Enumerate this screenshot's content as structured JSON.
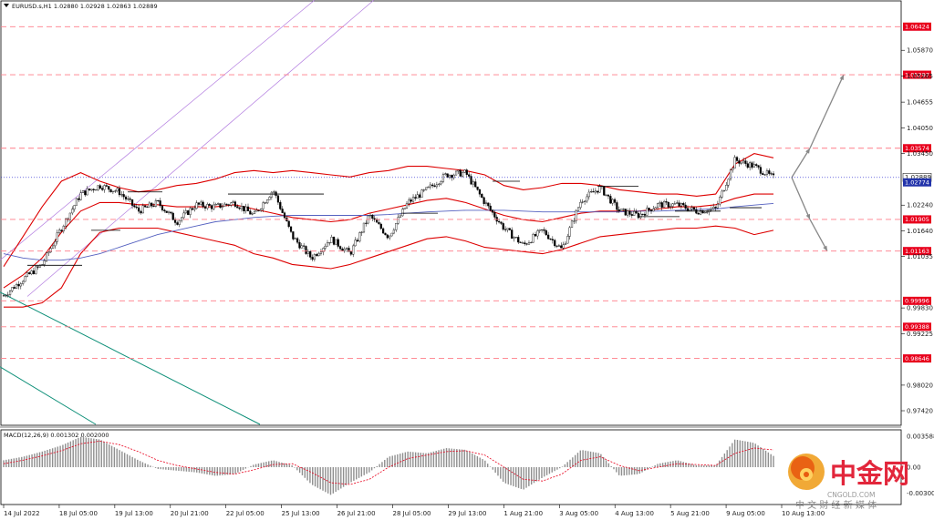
{
  "header": {
    "menu_icon": "triangle-down-icon",
    "title": "EURUSD.s,H1  1.02880 1.02928 1.02863 1.02889"
  },
  "macd_label": "MACD(12,26,9) 0.001302 0.002000",
  "watermark": {
    "brand": "中金网",
    "domain": "CNGOLD.COM",
    "tagline": "中 文 财 经 新 媒 体",
    "logo_icon": "cngold-logo-icon"
  },
  "colors": {
    "level_line": "#ff7c88",
    "level_label_bg": "#e8001c",
    "bollinger": "#dd0000",
    "ma_blue": "#5561c0",
    "channel": "#b37de0",
    "teal": "#0d8f78",
    "macd_bar": "#8f8f8f",
    "macd_signal": "#e8001c",
    "arrow": "#888888",
    "bid_line": "#1a1acc"
  },
  "chart_data": {
    "type": "candlestick",
    "symbol": "EURUSD.s",
    "timeframe": "H1",
    "ohlc_header": {
      "open": 1.0288,
      "high": 1.02928,
      "low": 1.02863,
      "close": 1.02889
    },
    "ylim": [
      0.971,
      1.0675
    ],
    "y_ticks": [
      "1.05870",
      "1.05265",
      "1.04655",
      "1.04050",
      "1.03450",
      "1.02240",
      "1.01640",
      "1.01035",
      "0.99830",
      "0.99225",
      "0.98020",
      "0.97420"
    ],
    "x_ticks": [
      "14 Jul 2022",
      "18 Jul 05:00",
      "19 Jul 13:00",
      "20 Jul 21:00",
      "22 Jul 05:00",
      "25 Jul 13:00",
      "26 Jul 21:00",
      "28 Jul 05:00",
      "29 Jul 13:00",
      "1 Aug 21:00",
      "3 Aug 05:00",
      "4 Aug 13:00",
      "5 Aug 21:00",
      "9 Aug 05:00",
      "10 Aug 13:00"
    ],
    "levels": [
      "1.06424",
      "1.05297",
      "1.03574",
      "1.01905",
      "1.01163",
      "0.99996",
      "0.99388",
      "0.98646"
    ],
    "current_price": "1.02889",
    "secondary_price": "1.02774",
    "price_path": [
      1.0012,
      1.005,
      1.0085,
      1.017,
      1.025,
      1.027,
      1.0255,
      1.021,
      1.023,
      1.0185,
      1.0225,
      1.022,
      1.023,
      1.02,
      1.026,
      1.015,
      1.01,
      1.0145,
      1.011,
      1.02,
      1.015,
      1.023,
      1.026,
      1.0295,
      1.03,
      1.023,
      1.017,
      1.013,
      1.0165,
      1.012,
      1.0235,
      1.0265,
      1.021,
      1.02,
      1.0225,
      1.0225,
      1.021,
      1.0215,
      1.033,
      1.0315,
      1.0288
    ],
    "bollinger_upper": [
      1.008,
      1.015,
      1.022,
      1.028,
      1.03,
      1.028,
      1.0265,
      1.0255,
      1.026,
      1.027,
      1.0275,
      1.0285,
      1.03,
      1.0305,
      1.03,
      1.0305,
      1.03,
      1.0295,
      1.029,
      1.03,
      1.0305,
      1.0315,
      1.0315,
      1.031,
      1.0305,
      1.0295,
      1.027,
      1.026,
      1.0265,
      1.0275,
      1.0275,
      1.027,
      1.026,
      1.0255,
      1.025,
      1.025,
      1.0245,
      1.025,
      1.032,
      1.0345,
      1.0335
    ],
    "bollinger_middle": [
      1.003,
      1.006,
      1.01,
      1.016,
      1.021,
      1.023,
      1.023,
      1.0225,
      1.0225,
      1.022,
      1.022,
      1.022,
      1.0225,
      1.0215,
      1.0205,
      1.0195,
      1.019,
      1.0185,
      1.019,
      1.0205,
      1.0215,
      1.0225,
      1.0235,
      1.024,
      1.023,
      1.0215,
      1.02,
      1.019,
      1.0185,
      1.0195,
      1.0205,
      1.021,
      1.021,
      1.021,
      1.0215,
      1.022,
      1.022,
      1.0225,
      1.024,
      1.025,
      1.025
    ],
    "bollinger_lower": [
      0.9985,
      0.9985,
      0.9995,
      1.003,
      1.011,
      1.016,
      1.017,
      1.017,
      1.017,
      1.016,
      1.015,
      1.014,
      1.013,
      1.011,
      1.01,
      1.0085,
      1.008,
      1.0075,
      1.0085,
      1.01,
      1.0115,
      1.013,
      1.0145,
      1.015,
      1.014,
      1.0125,
      1.012,
      1.0115,
      1.011,
      1.012,
      1.0135,
      1.015,
      1.0155,
      1.016,
      1.0165,
      1.017,
      1.017,
      1.0175,
      1.017,
      1.0155,
      1.0165
    ],
    "ma_blue": [
      1.011,
      1.01,
      1.0095,
      1.0095,
      1.01,
      1.011,
      1.0125,
      1.014,
      1.0155,
      1.0165,
      1.0175,
      1.0185,
      1.019,
      1.0195,
      1.0198,
      1.02,
      1.02,
      1.02,
      1.02,
      1.02,
      1.0202,
      1.0205,
      1.0208,
      1.021,
      1.0212,
      1.0212,
      1.0212,
      1.021,
      1.0208,
      1.0208,
      1.0208,
      1.0208,
      1.0208,
      1.021,
      1.021,
      1.0212,
      1.0214,
      1.0215,
      1.022,
      1.0224,
      1.0228
    ],
    "projection_up": [
      [
        1.02889,
        1.03574
      ],
      [
        1.03574,
        1.05297
      ]
    ],
    "projection_down": [
      [
        1.02889,
        1.01905
      ],
      [
        1.01905,
        1.01163
      ]
    ],
    "macd": {
      "ylim": [
        -0.0042,
        0.0042
      ],
      "y_ticks": [
        "0.003588",
        "0.00",
        "-0.003009"
      ],
      "histogram": [
        0.0008,
        0.0012,
        0.0018,
        0.0025,
        0.0035,
        0.0032,
        0.002,
        0.0008,
        -0.0002,
        -0.0004,
        -0.0006,
        -0.001,
        -0.0008,
        0.0003,
        0.0008,
        0.0002,
        -0.002,
        -0.0032,
        -0.0018,
        -0.0006,
        0.0012,
        0.0018,
        0.0016,
        0.0022,
        0.002,
        0.0008,
        -0.0018,
        -0.0026,
        -0.0012,
        0.0,
        0.002,
        0.0016,
        -0.001,
        -0.0008,
        0.0004,
        0.0008,
        0.0002,
        0.0002,
        0.0032,
        0.0028,
        0.0013
      ],
      "signal": [
        0.0004,
        0.0008,
        0.0013,
        0.0019,
        0.0027,
        0.003,
        0.0026,
        0.0018,
        0.0008,
        0.0002,
        -0.0002,
        -0.0006,
        -0.0008,
        -0.0003,
        0.0003,
        0.0004,
        -0.0006,
        -0.0018,
        -0.002,
        -0.0014,
        0.0,
        0.001,
        0.0014,
        0.0018,
        0.0019,
        0.0014,
        0.0,
        -0.0014,
        -0.0016,
        -0.0008,
        0.0008,
        0.0012,
        0.0002,
        -0.0004,
        0.0,
        0.0004,
        0.0003,
        0.0002,
        0.0016,
        0.0022,
        0.002
      ]
    }
  }
}
